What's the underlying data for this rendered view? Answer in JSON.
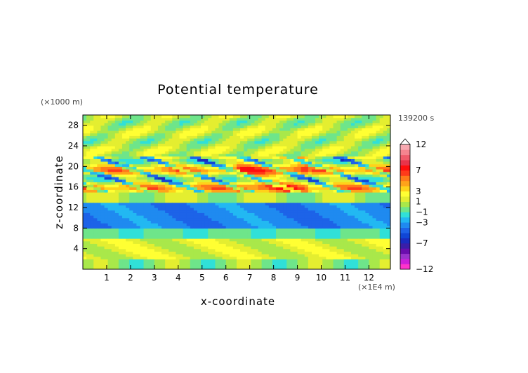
{
  "chart_data": {
    "type": "heatmap",
    "title": "Potential temperature",
    "xlabel": "x-coordinate",
    "ylabel": "z-coordinate",
    "x_unit": "(×1E4 m)",
    "y_unit": "(×1000 m)",
    "time_label": "139200 s",
    "xlim": [
      0,
      12.9
    ],
    "ylim": [
      0,
      30
    ],
    "x_ticks": [
      1,
      2,
      3,
      4,
      5,
      6,
      7,
      8,
      9,
      10,
      11,
      12
    ],
    "y_ticks": [
      4,
      8,
      12,
      16,
      20,
      24,
      28
    ],
    "colorbar": {
      "levels": [
        -12,
        -11,
        -10,
        -9,
        -8,
        -7,
        -6,
        -5,
        -4,
        -3,
        -2,
        -1,
        0,
        1,
        2,
        3,
        4,
        5,
        6,
        7,
        8,
        9,
        10,
        11,
        12
      ],
      "colors": [
        "#ff33cc",
        "#cc1fd9",
        "#9933cc",
        "#6a0dad",
        "#3a1ea8",
        "#1a2bc0",
        "#1046d6",
        "#1d63e8",
        "#1f8af0",
        "#22b8f2",
        "#30e0d8",
        "#6ee58a",
        "#a9e84a",
        "#e4ee30",
        "#ffff33",
        "#ffd21a",
        "#ffa31a",
        "#ff7a1a",
        "#ff3a1a",
        "#ff0d0d",
        "#e8334a",
        "#f05a6a",
        "#f5848f",
        "#f7a8b0"
      ],
      "labels": [
        "-12",
        "-7",
        "-3",
        "-1",
        "1",
        "3",
        "7",
        "12"
      ]
    },
    "field_summary": [
      {
        "z_range": [
          0,
          2
        ],
        "value": 0
      },
      {
        "z_range": [
          2,
          6
        ],
        "value": 1
      },
      {
        "z_range": [
          6,
          8
        ],
        "value": -1
      },
      {
        "z_range": [
          8,
          13
        ],
        "value": -4
      },
      {
        "z_range": [
          13,
          15
        ],
        "value": 1
      },
      {
        "z_range": [
          15,
          22
        ],
        "value": 3
      },
      {
        "z_range": [
          22,
          30
        ],
        "value": 1
      }
    ]
  }
}
